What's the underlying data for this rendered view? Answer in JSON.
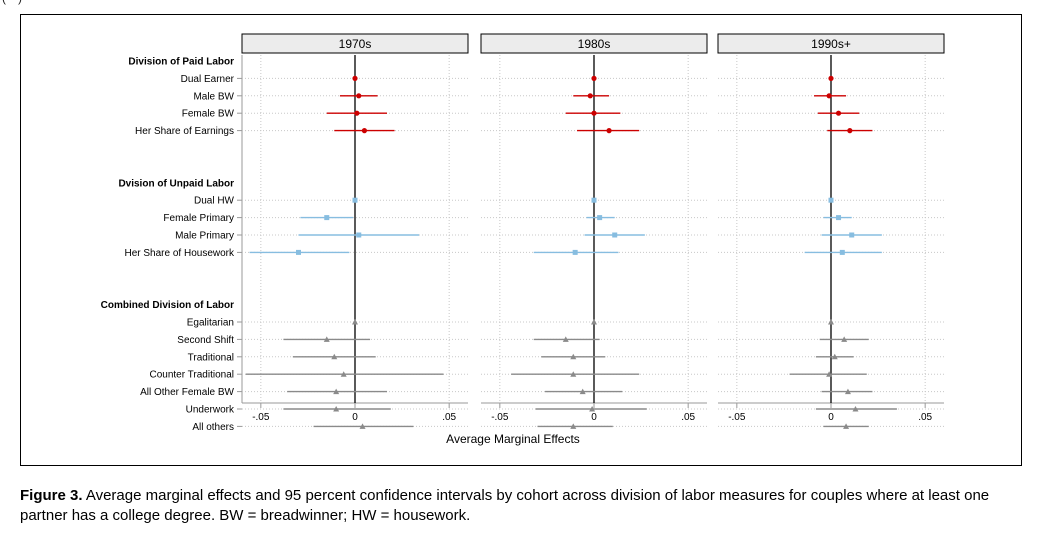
{
  "top_fragment": "(---)",
  "caption": {
    "label": "Figure 3.",
    "text": " Average marginal effects and 95 percent confidence intervals by cohort across division of labor measures for couples where at least one partner has a college degree. BW = breadwinner; HW = housework."
  },
  "colors": {
    "paid": "#cc0000",
    "unpaid": "#87bde0",
    "combined": "#8a8a8a",
    "zero_line": "#000000",
    "panel_header_bg": "#ececec"
  },
  "chart_data": {
    "type": "coefficient_plot",
    "xlabel": "Average Marginal Effects",
    "xlim": [
      -0.06,
      0.06
    ],
    "xticks": [
      -0.05,
      0,
      0.05
    ],
    "xtick_labels": [
      "-.05",
      "0",
      ".05"
    ],
    "grid": true,
    "panels": [
      "1970s",
      "1980s",
      "1990s+"
    ],
    "groups": [
      {
        "name": "Division of Paid Labor",
        "marker": "circle",
        "color": "#cc0000",
        "rows": [
          {
            "label": "Dual Earner",
            "est": [
              0.0,
              0.0,
              0.0
            ],
            "lo": [
              0.0,
              0.0,
              0.0
            ],
            "hi": [
              0.0,
              0.0,
              0.0
            ]
          },
          {
            "label": "Male BW",
            "est": [
              0.002,
              -0.002,
              -0.001
            ],
            "lo": [
              -0.008,
              -0.011,
              -0.009
            ],
            "hi": [
              0.012,
              0.008,
              0.008
            ]
          },
          {
            "label": "Female BW",
            "est": [
              0.001,
              0.0,
              0.004
            ],
            "lo": [
              -0.015,
              -0.015,
              -0.007
            ],
            "hi": [
              0.017,
              0.014,
              0.015
            ]
          },
          {
            "label": "Her Share of Earnings",
            "est": [
              0.005,
              0.008,
              0.01
            ],
            "lo": [
              -0.011,
              -0.009,
              -0.002
            ],
            "hi": [
              0.021,
              0.024,
              0.022
            ]
          }
        ]
      },
      {
        "name": "Dvision of Unpaid Labor",
        "marker": "square",
        "color": "#87bde0",
        "rows": [
          {
            "label": "Dual HW",
            "est": [
              0.0,
              0.0,
              0.0
            ],
            "lo": [
              0.0,
              0.0,
              0.0
            ],
            "hi": [
              0.0,
              0.0,
              0.0
            ]
          },
          {
            "label": "Female Primary",
            "est": [
              -0.015,
              0.003,
              0.004
            ],
            "lo": [
              -0.029,
              -0.004,
              -0.004
            ],
            "hi": [
              -0.001,
              0.011,
              0.011
            ]
          },
          {
            "label": "Male Primary",
            "est": [
              0.002,
              0.011,
              0.011
            ],
            "lo": [
              -0.03,
              -0.005,
              -0.005
            ],
            "hi": [
              0.034,
              0.027,
              0.027
            ]
          },
          {
            "label": "Her Share of Housework",
            "est": [
              -0.03,
              -0.01,
              0.006
            ],
            "lo": [
              -0.056,
              -0.032,
              -0.014
            ],
            "hi": [
              -0.003,
              0.013,
              0.027
            ]
          }
        ]
      },
      {
        "name": "Combined Division of Labor",
        "marker": "triangle",
        "color": "#8a8a8a",
        "rows": [
          {
            "label": "Egalitarian",
            "est": [
              0.0,
              0.0,
              0.0
            ],
            "lo": [
              0.0,
              0.0,
              0.0
            ],
            "hi": [
              0.0,
              0.0,
              0.0
            ]
          },
          {
            "label": "Second Shift",
            "est": [
              -0.015,
              -0.015,
              0.007
            ],
            "lo": [
              -0.038,
              -0.032,
              -0.006
            ],
            "hi": [
              0.008,
              0.003,
              0.02
            ]
          },
          {
            "label": "Traditional",
            "est": [
              -0.011,
              -0.011,
              0.002
            ],
            "lo": [
              -0.033,
              -0.028,
              -0.008
            ],
            "hi": [
              0.011,
              0.006,
              0.012
            ]
          },
          {
            "label": "Counter Traditional",
            "est": [
              -0.006,
              -0.011,
              -0.001
            ],
            "lo": [
              -0.058,
              -0.044,
              -0.022
            ],
            "hi": [
              0.047,
              0.024,
              0.019
            ]
          },
          {
            "label": "All Other Female BW",
            "est": [
              -0.01,
              -0.006,
              0.009
            ],
            "lo": [
              -0.036,
              -0.026,
              -0.005
            ],
            "hi": [
              0.017,
              0.015,
              0.022
            ]
          },
          {
            "label": "Underwork",
            "est": [
              -0.01,
              -0.001,
              0.013
            ],
            "lo": [
              -0.038,
              -0.031,
              -0.008
            ],
            "hi": [
              0.019,
              0.028,
              0.035
            ]
          },
          {
            "label": "All others",
            "est": [
              0.004,
              -0.011,
              0.008
            ],
            "lo": [
              -0.022,
              -0.03,
              -0.004
            ],
            "hi": [
              0.031,
              0.01,
              0.02
            ]
          }
        ]
      }
    ]
  }
}
